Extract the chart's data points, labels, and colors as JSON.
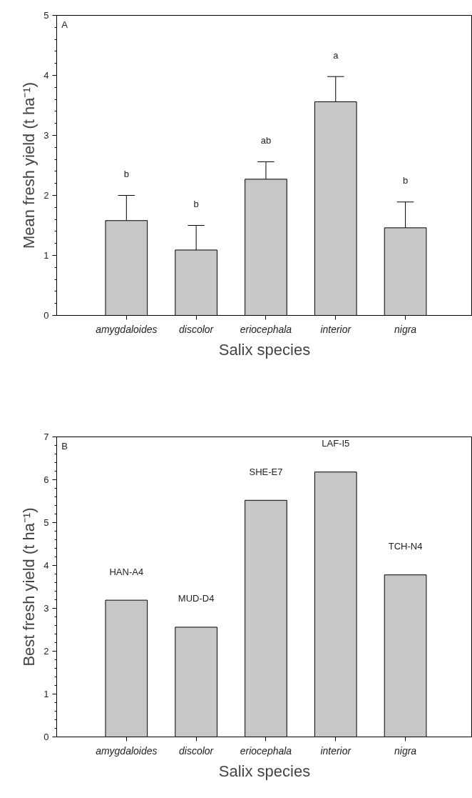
{
  "chart_data": [
    {
      "type": "bar",
      "ylabel": "Mean fresh yield (t ha⁻¹)",
      "xlabel": "Salix species",
      "categories": [
        "amygdaloides",
        "discolor",
        "eriocephala",
        "interior",
        "nigra"
      ],
      "values": [
        1.58,
        1.09,
        2.27,
        3.56,
        1.46
      ],
      "errors": [
        [
          1.58,
          2.0
        ],
        [
          1.09,
          1.5
        ],
        [
          2.27,
          2.56
        ],
        [
          3.56,
          3.98
        ],
        [
          1.46,
          1.89
        ]
      ],
      "color": "#c6c7c9",
      "ylim": [
        0,
        5
      ],
      "yticks": [
        0,
        1,
        2,
        3,
        4,
        5
      ],
      "annotations": [
        "A",
        "b",
        "b",
        "ab",
        "a",
        "b"
      ]
    },
    {
      "type": "bar",
      "ylabel": "Best fresh yield (t ha⁻¹)",
      "xlabel": "Salix species",
      "categories": [
        "amygdaloides",
        "discolor",
        "eriocephala",
        "interior",
        "nigra"
      ],
      "values": [
        3.19,
        2.56,
        5.52,
        6.18,
        3.78
      ],
      "color": "#c6c7c9",
      "ylim": [
        0,
        7
      ],
      "yticks": [
        0,
        1,
        2,
        3,
        4,
        5,
        6,
        7
      ],
      "annotations": [
        "B",
        "HAN-A4",
        "MUD-D4",
        "SHE-E7",
        "LAF-I5",
        "TCH-N4"
      ]
    }
  ]
}
